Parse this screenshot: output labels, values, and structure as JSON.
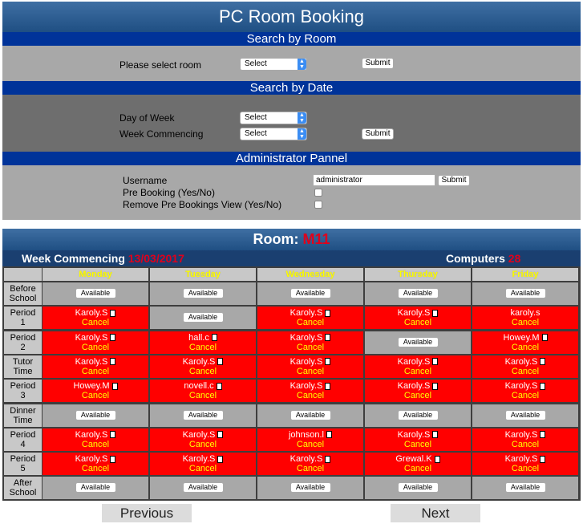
{
  "header": {
    "title": "PC Room Booking"
  },
  "search_room": {
    "section_title": "Search by Room",
    "label": "Please select room",
    "select_value": "Select",
    "submit_label": "Submit"
  },
  "search_date": {
    "section_title": "Search by Date",
    "day_label": "Day of Week",
    "day_value": "Select",
    "week_label": "Week Commencing",
    "week_value": "Select",
    "submit_label": "Submit"
  },
  "admin": {
    "section_title": "Administrator Pannel",
    "username_label": "Username",
    "username_value": "administrator",
    "submit_label": "Submit",
    "prebooking_label": "Pre Booking (Yes/No)",
    "remove_label": "Remove Pre Bookings View (Yes/No)"
  },
  "room": {
    "label": "Room:",
    "value": "M11"
  },
  "week": {
    "label": "Week Commencing",
    "date": "13/03/2017",
    "computers_label": "Computers",
    "computers_value": "28"
  },
  "days": [
    "Monday",
    "Tuesday",
    "Wednesday",
    "Thursday",
    "Friday"
  ],
  "periods": [
    {
      "label": "Before School",
      "slots": [
        {
          "s": "a"
        },
        {
          "s": "a"
        },
        {
          "s": "a"
        },
        {
          "s": "a"
        },
        {
          "s": "a"
        }
      ]
    },
    {
      "label": "Period 1",
      "slots": [
        {
          "s": "b",
          "who": "Karoly.S"
        },
        {
          "s": "a"
        },
        {
          "s": "b",
          "who": "Karoly.S"
        },
        {
          "s": "b",
          "who": "Karoly.S"
        },
        {
          "s": "b",
          "who": "karoly.s",
          "nolock": true
        }
      ]
    },
    {
      "label": "Period 2",
      "slots": [
        {
          "s": "b",
          "who": "Karoly.S"
        },
        {
          "s": "b",
          "who": "hall.c"
        },
        {
          "s": "b",
          "who": "Karoly.S"
        },
        {
          "s": "a"
        },
        {
          "s": "b",
          "who": "Howey.M"
        }
      ]
    },
    {
      "label": "Tutor Time",
      "slots": [
        {
          "s": "b",
          "who": "Karoly.S"
        },
        {
          "s": "b",
          "who": "Karoly.S"
        },
        {
          "s": "b",
          "who": "Karoly.S"
        },
        {
          "s": "b",
          "who": "Karoly.S"
        },
        {
          "s": "b",
          "who": "Karoly.S"
        }
      ]
    },
    {
      "label": "Period 3",
      "slots": [
        {
          "s": "b",
          "who": "Howey.M"
        },
        {
          "s": "b",
          "who": "novell.c"
        },
        {
          "s": "b",
          "who": "Karoly.S"
        },
        {
          "s": "b",
          "who": "Karoly.S"
        },
        {
          "s": "b",
          "who": "Karoly.S"
        }
      ]
    },
    {
      "label": "Dinner Time",
      "slots": [
        {
          "s": "a"
        },
        {
          "s": "a"
        },
        {
          "s": "a"
        },
        {
          "s": "a"
        },
        {
          "s": "a"
        }
      ]
    },
    {
      "label": "Period 4",
      "slots": [
        {
          "s": "b",
          "who": "Karoly.S"
        },
        {
          "s": "b",
          "who": "Karoly.S"
        },
        {
          "s": "b",
          "who": "johnson.l"
        },
        {
          "s": "b",
          "who": "Karoly.S"
        },
        {
          "s": "b",
          "who": "Karoly.S"
        }
      ]
    },
    {
      "label": "Period 5",
      "slots": [
        {
          "s": "b",
          "who": "Karoly.S"
        },
        {
          "s": "b",
          "who": "Karoly.S"
        },
        {
          "s": "b",
          "who": "Karoly.S"
        },
        {
          "s": "b",
          "who": "Grewal.K"
        },
        {
          "s": "b",
          "who": "Karoly.S"
        }
      ]
    },
    {
      "label": "After School",
      "slots": [
        {
          "s": "a"
        },
        {
          "s": "a"
        },
        {
          "s": "a"
        },
        {
          "s": "a"
        },
        {
          "s": "a"
        }
      ]
    }
  ],
  "slot_labels": {
    "available": "Available",
    "cancel": "Cancel"
  },
  "nav": {
    "previous": "Previous",
    "next": "Next"
  },
  "colors": {
    "booked": "#ff0000",
    "cancel_text": "#ffff00",
    "header_blue": "#003399"
  }
}
